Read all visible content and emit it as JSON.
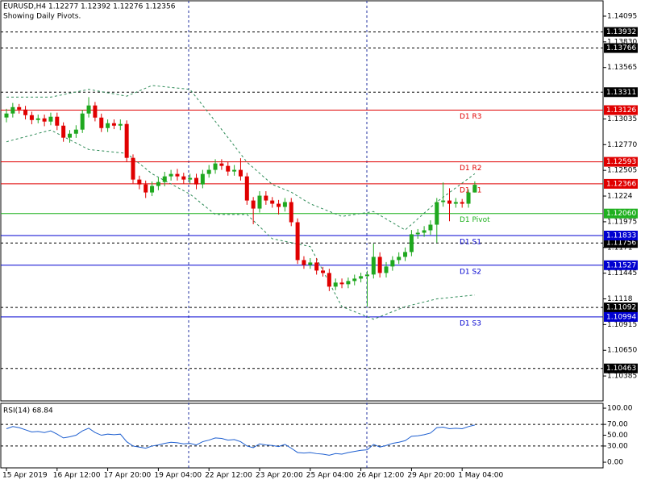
{
  "chart_data": {
    "type": "candlestick",
    "title": "EURUSD,H4  1.12277 1.12392 1.12276 1.12356",
    "subtitle": "Showing Daily Pivots.",
    "categories": [
      "15 Apr 2019",
      null,
      null,
      null,
      null,
      null,
      null,
      null,
      "16 Apr 12:00",
      null,
      null,
      null,
      null,
      null,
      null,
      null,
      "17 Apr 20:00",
      null,
      null,
      null,
      null,
      null,
      null,
      null,
      "19 Apr 04:00",
      null,
      null,
      null,
      null,
      null,
      null,
      null,
      "22 Apr 12:00",
      null,
      null,
      null,
      null,
      null,
      null,
      null,
      "23 Apr 20:00",
      null,
      null,
      null,
      null,
      null,
      null,
      null,
      "25 Apr 04:00",
      null,
      null,
      null,
      null,
      null,
      null,
      null,
      "26 Apr 12:00",
      null,
      null,
      null,
      null,
      null,
      null,
      null,
      "29 Apr 20:00",
      null,
      null,
      null,
      null,
      null,
      null,
      null,
      "1 May 04:00",
      null,
      null
    ],
    "open": [
      1.1305,
      1.13091,
      1.13157,
      1.13132,
      1.13074,
      1.13024,
      1.13041,
      1.13008,
      1.13058,
      1.12966,
      1.12842,
      1.12883,
      1.12925,
      1.13091,
      1.13174,
      1.13049,
      1.12941,
      1.12991,
      1.12966,
      1.12983,
      1.12634,
      1.1241,
      1.1236,
      1.12277,
      1.12344,
      1.12385,
      1.12443,
      1.12468,
      1.12443,
      1.1241,
      1.12427,
      1.1236,
      1.12468,
      1.1251,
      1.12576,
      1.12551,
      1.12493,
      1.1251,
      1.12443,
      1.12194,
      1.12111,
      1.12244,
      1.12194,
      1.12161,
      1.12128,
      1.12178,
      1.1197,
      1.1158,
      1.1153,
      1.11555,
      1.11472,
      1.11447,
      1.11306,
      1.11348,
      1.11331,
      1.11364,
      1.11389,
      1.11414,
      1.11431,
      1.11613,
      1.11447,
      1.11514,
      1.1158,
      1.11613,
      1.11663,
      1.11846,
      1.11862,
      1.11887,
      1.11945,
      1.12178,
      1.12194,
      1.12161,
      1.12178,
      1.12161,
      1.12277
    ],
    "high": [
      1.1314,
      1.132,
      1.1319,
      1.1317,
      1.1311,
      1.1308,
      1.1308,
      1.131,
      1.131,
      1.13,
      1.1292,
      1.1297,
      1.1313,
      1.1326,
      1.1321,
      1.1309,
      1.1303,
      1.1303,
      1.1303,
      1.1302,
      1.1267,
      1.1245,
      1.124,
      1.1239,
      1.1243,
      1.1249,
      1.1251,
      1.1252,
      1.1248,
      1.1247,
      1.1247,
      1.1251,
      1.1256,
      1.1262,
      1.1262,
      1.1259,
      1.1256,
      1.1263,
      1.1248,
      1.1223,
      1.1229,
      1.1229,
      1.1223,
      1.122,
      1.1222,
      1.1222,
      1.1201,
      1.1162,
      1.116,
      1.116,
      1.1151,
      1.1149,
      1.1139,
      1.1139,
      1.114,
      1.1143,
      1.1145,
      1.1147,
      1.1175,
      1.1166,
      1.1156,
      1.1162,
      1.1166,
      1.1171,
      1.1189,
      1.119,
      1.1193,
      1.1199,
      1.1222,
      1.1238,
      1.1232,
      1.1222,
      1.1221,
      1.1231,
      1.12392
    ],
    "low": [
      1.13,
      1.1305,
      1.1309,
      1.1303,
      1.1298,
      1.1299,
      1.1296,
      1.1297,
      1.1292,
      1.128,
      1.1279,
      1.1284,
      1.1289,
      1.1305,
      1.1301,
      1.129,
      1.129,
      1.1293,
      1.1292,
      1.1259,
      1.1237,
      1.1231,
      1.1222,
      1.1224,
      1.123,
      1.1234,
      1.124,
      1.124,
      1.1237,
      1.1237,
      1.1231,
      1.1232,
      1.1243,
      1.1247,
      1.1251,
      1.1245,
      1.1245,
      1.124,
      1.1215,
      1.1195,
      1.1207,
      1.1215,
      1.1212,
      1.1205,
      1.1208,
      1.1193,
      1.1154,
      1.1149,
      1.1149,
      1.1143,
      1.1141,
      1.1126,
      1.1127,
      1.1129,
      1.1129,
      1.1132,
      1.1135,
      1.111,
      1.1139,
      1.114,
      1.114,
      1.1147,
      1.1154,
      1.1157,
      1.1162,
      1.118,
      1.1182,
      1.1184,
      1.1176,
      1.1213,
      1.1198,
      1.1212,
      1.1212,
      1.1212,
      1.12276
    ],
    "close": [
      1.13091,
      1.13157,
      1.13132,
      1.13074,
      1.13024,
      1.13041,
      1.13008,
      1.13058,
      1.12966,
      1.12842,
      1.12883,
      1.12925,
      1.13091,
      1.13174,
      1.13049,
      1.12941,
      1.12991,
      1.12966,
      1.12983,
      1.12634,
      1.1241,
      1.1236,
      1.12277,
      1.12344,
      1.12385,
      1.12443,
      1.12468,
      1.12443,
      1.1241,
      1.12427,
      1.1236,
      1.12468,
      1.1251,
      1.12576,
      1.12551,
      1.12493,
      1.1251,
      1.12443,
      1.12194,
      1.12111,
      1.12244,
      1.12194,
      1.12161,
      1.12128,
      1.12178,
      1.1197,
      1.1158,
      1.1153,
      1.11555,
      1.11472,
      1.11447,
      1.11306,
      1.11348,
      1.11331,
      1.11364,
      1.11389,
      1.11414,
      1.11431,
      1.11613,
      1.11447,
      1.11514,
      1.1158,
      1.11613,
      1.11663,
      1.11846,
      1.11862,
      1.11887,
      1.11945,
      1.12178,
      1.12194,
      1.12161,
      1.12178,
      1.12161,
      1.12277,
      1.12356
    ],
    "up_color": "#1fa81f",
    "down_color": "#e00000",
    "ylim": [
      1.10128,
      1.14253
    ],
    "yticks": [
      1.14095,
      {
        "value": 1.1383,
        "label": "1.13830"
      },
      1.13565,
      1.13035,
      {
        "value": 1.1277,
        "label": "1.12770"
      },
      1.12505,
      1.1224,
      1.11975,
      1.1171,
      1.11445,
      1.1118,
      1.10915,
      {
        "value": 1.1065,
        "label": "1.10650"
      },
      1.10385
    ],
    "pivots": [
      {
        "name": "D1 R3",
        "value": 1.13126,
        "color": "#e00000"
      },
      {
        "name": "D1 R2",
        "value": 1.12593,
        "color": "#e00000"
      },
      {
        "name": "D1 R1",
        "value": 1.12366,
        "color": "#e00000"
      },
      {
        "name": "D1 Pivot",
        "value": {
          "value": 1.1206,
          "label": "1.12060"
        },
        "color": "#1fb01f"
      },
      {
        "name": "D1 S1",
        "value": 1.11833,
        "color": "#0000d0"
      },
      {
        "name": "D1 S2",
        "value": 1.11527,
        "color": "#0000d0"
      },
      {
        "name": "D1 S3",
        "value": 1.10994,
        "color": "#0000d0"
      }
    ],
    "marked_levels": [
      1.13932,
      1.13766,
      1.13311,
      1.11756,
      1.11092,
      1.10463
    ],
    "bands": {
      "color": "#2e8b57",
      "x": [
        0,
        7,
        13,
        19,
        23,
        29,
        33,
        38,
        42,
        45,
        48,
        53,
        58,
        63,
        68,
        74
      ],
      "upper": [
        1.1326,
        1.1326,
        1.1334,
        1.1327,
        1.1338,
        1.1334,
        1.1301,
        1.1259,
        1.1236,
        1.1228,
        1.1216,
        1.1203,
        1.1208,
        1.1189,
        1.1218,
        1.1247
      ],
      "lower": [
        1.128,
        1.1292,
        1.1272,
        1.1268,
        1.1247,
        1.1226,
        1.1205,
        1.1205,
        1.118,
        1.1176,
        1.1172,
        1.111,
        1.1097,
        1.111,
        1.1118,
        1.1122
      ]
    },
    "rsi": {
      "title": "RSI(14) 68.84",
      "color": "#1e5fd0",
      "values": [
        62,
        66,
        64,
        60,
        56,
        57,
        55,
        58,
        52,
        45,
        47,
        50,
        58,
        63,
        55,
        50,
        52,
        51,
        52,
        38,
        30,
        28,
        26,
        30,
        32,
        35,
        37,
        36,
        34,
        35,
        32,
        38,
        41,
        45,
        44,
        41,
        42,
        38,
        30,
        27,
        34,
        32,
        31,
        29,
        33,
        26,
        18,
        17,
        18,
        16,
        15,
        13,
        16,
        15,
        18,
        20,
        22,
        23,
        33,
        28,
        31,
        35,
        37,
        40,
        48,
        49,
        51,
        54,
        64,
        65,
        62,
        63,
        62,
        66,
        68.84
      ],
      "ylim": [
        -10.4,
        109
      ],
      "yticks": [
        {
          "value": 100,
          "label": "100.00"
        },
        {
          "value": 70,
          "label": "70.00"
        },
        {
          "value": 50,
          "label": "50.00"
        },
        {
          "value": 30,
          "label": "30.00"
        },
        {
          "value": 0,
          "label": "0.00"
        }
      ],
      "levels": [
        70,
        30
      ]
    }
  }
}
